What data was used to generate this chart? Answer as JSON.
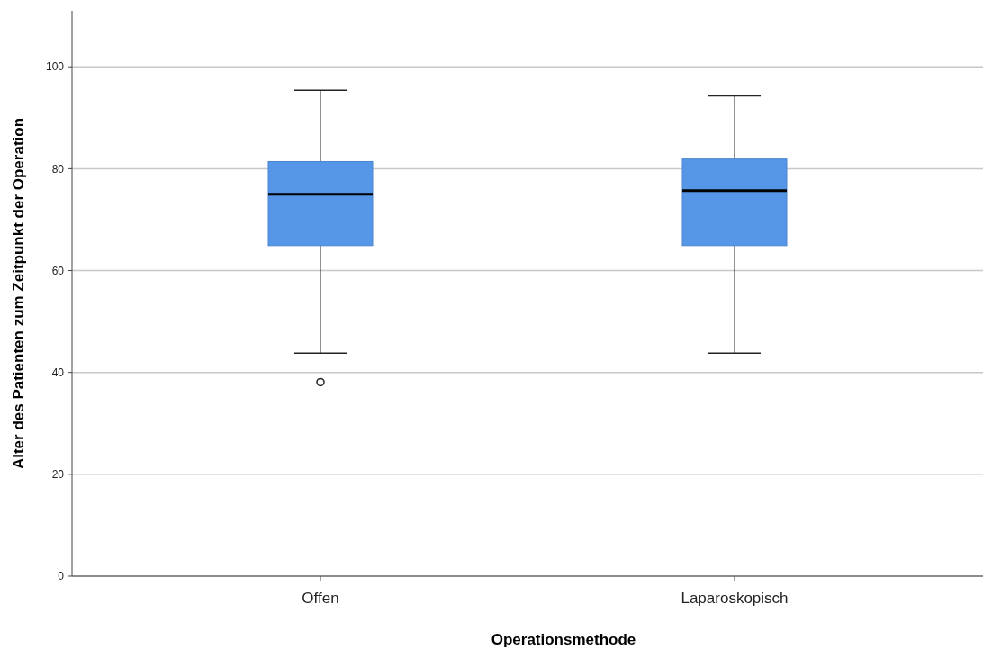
{
  "chart_data": {
    "type": "box",
    "xlabel": "Operationsmethode",
    "ylabel": "Alter des Patienten zum Zeitpunkt der Operation",
    "categories": [
      "Offen",
      "Laparoskopisch"
    ],
    "color": "#5596e6",
    "boxes": [
      {
        "low": 43.8,
        "q1": 64.9,
        "median": 75,
        "q3": 81.4,
        "high": 95.4,
        "outliers": [
          38.1
        ]
      },
      {
        "low": 43.8,
        "q1": 64.9,
        "median": 75.7,
        "q3": 81.9,
        "high": 94.3
      }
    ],
    "ylim": [
      0,
      111
    ],
    "yticks": [
      0,
      20,
      40,
      60,
      80,
      100
    ],
    "grid": "y"
  }
}
